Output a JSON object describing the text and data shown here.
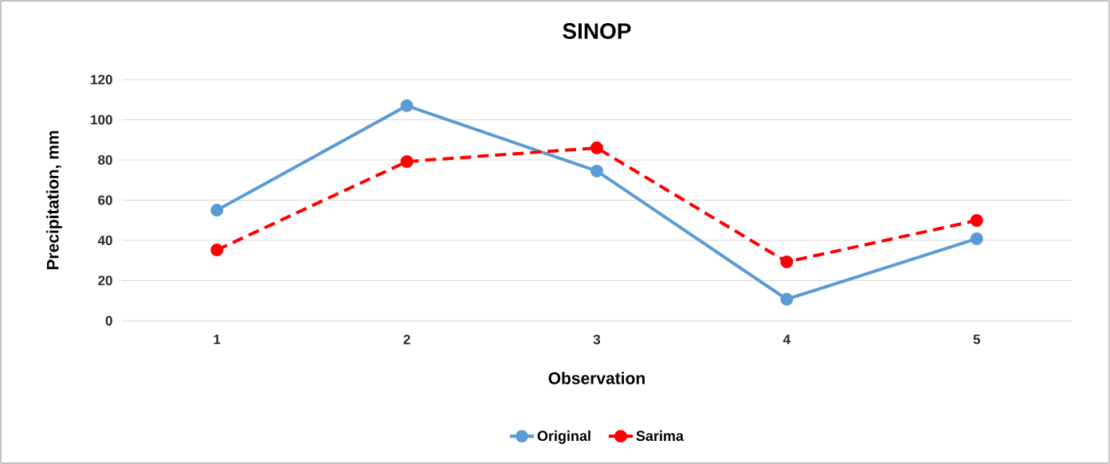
{
  "chart_data": {
    "type": "line",
    "title": "SINOP",
    "xlabel": "Observation",
    "ylabel": "Precipitation, mm",
    "categories": [
      "1",
      "2",
      "3",
      "4",
      "5"
    ],
    "series": [
      {
        "name": "Original",
        "color": "#5b9bd5",
        "values": [
          55,
          107,
          74.5,
          10.7,
          40.8
        ],
        "line_style": "solid"
      },
      {
        "name": "Sarima",
        "color": "#ff0000",
        "values": [
          35.2,
          79.2,
          86,
          29.3,
          49.9
        ],
        "line_style": "dashed"
      }
    ],
    "ylim": [
      0,
      120
    ],
    "yticks": [
      0,
      20,
      40,
      60,
      80,
      100,
      120
    ],
    "grid": "y",
    "legend": "bottom",
    "marker": "circle"
  }
}
